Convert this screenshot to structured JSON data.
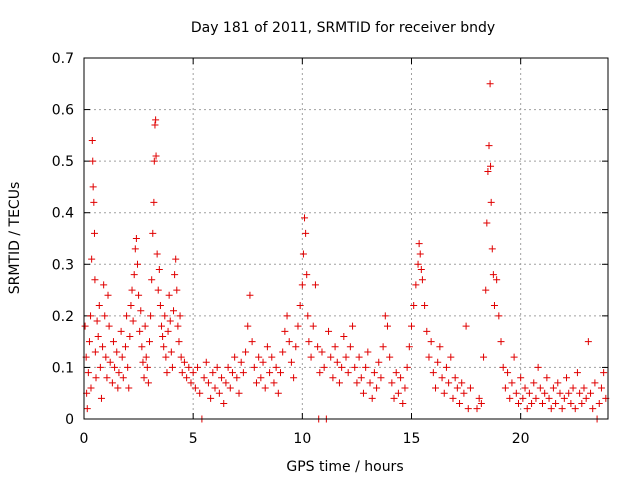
{
  "chart_data": {
    "type": "scatter",
    "title": "Day 181 of 2011, SRMTID for receiver bndy",
    "xlabel": "GPS time / hours",
    "ylabel": "SRMTID / TECUs",
    "xlim": [
      0,
      24
    ],
    "ylim": [
      0,
      0.7
    ],
    "x_ticks": [
      0,
      5,
      10,
      15,
      20
    ],
    "x_tick_labels": [
      "0",
      "5",
      "10",
      "15",
      "20"
    ],
    "y_ticks": [
      0,
      0.1,
      0.2,
      0.3,
      0.4,
      0.5,
      0.6,
      0.7
    ],
    "y_tick_labels": [
      "0",
      "0.1",
      "0.2",
      "0.3",
      "0.4",
      "0.5",
      "0.6",
      "0.7"
    ],
    "grid": true,
    "marker": "plus",
    "color": "#e00000",
    "series": [
      {
        "name": "SRMTID",
        "points": [
          [
            0.05,
            0.18
          ],
          [
            0.1,
            0.12
          ],
          [
            0.12,
            0.05
          ],
          [
            0.15,
            0.02
          ],
          [
            0.2,
            0.09
          ],
          [
            0.25,
            0.15
          ],
          [
            0.3,
            0.2
          ],
          [
            0.32,
            0.06
          ],
          [
            0.35,
            0.31
          ],
          [
            0.38,
            0.54
          ],
          [
            0.4,
            0.5
          ],
          [
            0.42,
            0.45
          ],
          [
            0.45,
            0.42
          ],
          [
            0.48,
            0.36
          ],
          [
            0.5,
            0.27
          ],
          [
            0.52,
            0.13
          ],
          [
            0.55,
            0.08
          ],
          [
            0.6,
            0.19
          ],
          [
            0.65,
            0.16
          ],
          [
            0.7,
            0.22
          ],
          [
            0.75,
            0.1
          ],
          [
            0.8,
            0.04
          ],
          [
            0.85,
            0.14
          ],
          [
            0.9,
            0.26
          ],
          [
            0.95,
            0.2
          ],
          [
            1.0,
            0.12
          ],
          [
            1.05,
            0.08
          ],
          [
            1.1,
            0.24
          ],
          [
            1.15,
            0.18
          ],
          [
            1.2,
            0.11
          ],
          [
            1.3,
            0.07
          ],
          [
            1.35,
            0.15
          ],
          [
            1.4,
            0.1
          ],
          [
            1.5,
            0.13
          ],
          [
            1.55,
            0.06
          ],
          [
            1.6,
            0.09
          ],
          [
            1.7,
            0.17
          ],
          [
            1.75,
            0.12
          ],
          [
            1.8,
            0.08
          ],
          [
            1.9,
            0.14
          ],
          [
            1.95,
            0.2
          ],
          [
            2.0,
            0.1
          ],
          [
            2.05,
            0.06
          ],
          [
            2.1,
            0.16
          ],
          [
            2.15,
            0.22
          ],
          [
            2.2,
            0.25
          ],
          [
            2.25,
            0.19
          ],
          [
            2.3,
            0.28
          ],
          [
            2.35,
            0.33
          ],
          [
            2.4,
            0.35
          ],
          [
            2.45,
            0.3
          ],
          [
            2.5,
            0.24
          ],
          [
            2.55,
            0.17
          ],
          [
            2.6,
            0.21
          ],
          [
            2.65,
            0.14
          ],
          [
            2.7,
            0.11
          ],
          [
            2.75,
            0.08
          ],
          [
            2.8,
            0.18
          ],
          [
            2.85,
            0.12
          ],
          [
            2.9,
            0.1
          ],
          [
            2.95,
            0.07
          ],
          [
            3.0,
            0.15
          ],
          [
            3.05,
            0.2
          ],
          [
            3.1,
            0.27
          ],
          [
            3.15,
            0.36
          ],
          [
            3.2,
            0.42
          ],
          [
            3.22,
            0.5
          ],
          [
            3.25,
            0.57
          ],
          [
            3.28,
            0.58
          ],
          [
            3.3,
            0.51
          ],
          [
            3.35,
            0.32
          ],
          [
            3.4,
            0.25
          ],
          [
            3.45,
            0.29
          ],
          [
            3.5,
            0.22
          ],
          [
            3.55,
            0.18
          ],
          [
            3.6,
            0.16
          ],
          [
            3.65,
            0.14
          ],
          [
            3.7,
            0.2
          ],
          [
            3.75,
            0.12
          ],
          [
            3.8,
            0.09
          ],
          [
            3.85,
            0.17
          ],
          [
            3.9,
            0.24
          ],
          [
            3.95,
            0.19
          ],
          [
            4.0,
            0.13
          ],
          [
            4.05,
            0.1
          ],
          [
            4.1,
            0.21
          ],
          [
            4.15,
            0.28
          ],
          [
            4.2,
            0.31
          ],
          [
            4.25,
            0.25
          ],
          [
            4.3,
            0.18
          ],
          [
            4.35,
            0.15
          ],
          [
            4.4,
            0.2
          ],
          [
            4.45,
            0.12
          ],
          [
            4.5,
            0.09
          ],
          [
            4.6,
            0.11
          ],
          [
            4.7,
            0.08
          ],
          [
            4.8,
            0.1
          ],
          [
            4.9,
            0.07
          ],
          [
            5.0,
            0.09
          ],
          [
            5.1,
            0.06
          ],
          [
            5.2,
            0.1
          ],
          [
            5.3,
            0.05
          ],
          [
            5.4,
            0.0
          ],
          [
            5.5,
            0.08
          ],
          [
            5.6,
            0.11
          ],
          [
            5.7,
            0.07
          ],
          [
            5.8,
            0.04
          ],
          [
            5.9,
            0.09
          ],
          [
            6.0,
            0.06
          ],
          [
            6.1,
            0.1
          ],
          [
            6.2,
            0.05
          ],
          [
            6.3,
            0.08
          ],
          [
            6.4,
            0.03
          ],
          [
            6.5,
            0.07
          ],
          [
            6.6,
            0.1
          ],
          [
            6.7,
            0.06
          ],
          [
            6.8,
            0.09
          ],
          [
            6.9,
            0.12
          ],
          [
            7.0,
            0.08
          ],
          [
            7.1,
            0.05
          ],
          [
            7.2,
            0.11
          ],
          [
            7.3,
            0.09
          ],
          [
            7.4,
            0.13
          ],
          [
            7.5,
            0.18
          ],
          [
            7.6,
            0.24
          ],
          [
            7.7,
            0.15
          ],
          [
            7.8,
            0.1
          ],
          [
            7.9,
            0.07
          ],
          [
            8.0,
            0.12
          ],
          [
            8.1,
            0.08
          ],
          [
            8.2,
            0.11
          ],
          [
            8.3,
            0.06
          ],
          [
            8.4,
            0.14
          ],
          [
            8.5,
            0.09
          ],
          [
            8.6,
            0.12
          ],
          [
            8.7,
            0.07
          ],
          [
            8.8,
            0.1
          ],
          [
            8.9,
            0.05
          ],
          [
            9.0,
            0.09
          ],
          [
            9.1,
            0.13
          ],
          [
            9.2,
            0.17
          ],
          [
            9.3,
            0.2
          ],
          [
            9.4,
            0.15
          ],
          [
            9.5,
            0.11
          ],
          [
            9.6,
            0.08
          ],
          [
            9.7,
            0.14
          ],
          [
            9.8,
            0.18
          ],
          [
            9.9,
            0.22
          ],
          [
            10.0,
            0.26
          ],
          [
            10.05,
            0.32
          ],
          [
            10.1,
            0.39
          ],
          [
            10.15,
            0.36
          ],
          [
            10.2,
            0.28
          ],
          [
            10.25,
            0.2
          ],
          [
            10.3,
            0.15
          ],
          [
            10.4,
            0.12
          ],
          [
            10.5,
            0.18
          ],
          [
            10.6,
            0.26
          ],
          [
            10.7,
            0.14
          ],
          [
            10.75,
            0.0
          ],
          [
            10.8,
            0.09
          ],
          [
            10.9,
            0.13
          ],
          [
            11.0,
            0.1
          ],
          [
            11.1,
            0.0
          ],
          [
            11.2,
            0.17
          ],
          [
            11.3,
            0.12
          ],
          [
            11.4,
            0.08
          ],
          [
            11.5,
            0.14
          ],
          [
            11.6,
            0.11
          ],
          [
            11.7,
            0.07
          ],
          [
            11.8,
            0.1
          ],
          [
            11.9,
            0.16
          ],
          [
            12.0,
            0.12
          ],
          [
            12.1,
            0.09
          ],
          [
            12.2,
            0.14
          ],
          [
            12.3,
            0.18
          ],
          [
            12.4,
            0.1
          ],
          [
            12.5,
            0.07
          ],
          [
            12.6,
            0.12
          ],
          [
            12.7,
            0.08
          ],
          [
            12.8,
            0.05
          ],
          [
            12.9,
            0.1
          ],
          [
            13.0,
            0.13
          ],
          [
            13.1,
            0.07
          ],
          [
            13.2,
            0.04
          ],
          [
            13.3,
            0.09
          ],
          [
            13.4,
            0.06
          ],
          [
            13.5,
            0.11
          ],
          [
            13.6,
            0.08
          ],
          [
            13.7,
            0.14
          ],
          [
            13.8,
            0.2
          ],
          [
            13.9,
            0.18
          ],
          [
            14.0,
            0.12
          ],
          [
            14.1,
            0.07
          ],
          [
            14.2,
            0.04
          ],
          [
            14.3,
            0.09
          ],
          [
            14.4,
            0.05
          ],
          [
            14.5,
            0.08
          ],
          [
            14.6,
            0.03
          ],
          [
            14.7,
            0.06
          ],
          [
            14.8,
            0.1
          ],
          [
            14.9,
            0.14
          ],
          [
            15.0,
            0.18
          ],
          [
            15.1,
            0.22
          ],
          [
            15.2,
            0.26
          ],
          [
            15.3,
            0.3
          ],
          [
            15.35,
            0.34
          ],
          [
            15.4,
            0.32
          ],
          [
            15.45,
            0.29
          ],
          [
            15.5,
            0.27
          ],
          [
            15.6,
            0.22
          ],
          [
            15.7,
            0.17
          ],
          [
            15.8,
            0.12
          ],
          [
            15.9,
            0.15
          ],
          [
            16.0,
            0.09
          ],
          [
            16.1,
            0.06
          ],
          [
            16.2,
            0.11
          ],
          [
            16.3,
            0.14
          ],
          [
            16.4,
            0.08
          ],
          [
            16.5,
            0.05
          ],
          [
            16.6,
            0.1
          ],
          [
            16.7,
            0.07
          ],
          [
            16.8,
            0.12
          ],
          [
            16.9,
            0.04
          ],
          [
            17.0,
            0.08
          ],
          [
            17.1,
            0.06
          ],
          [
            17.2,
            0.03
          ],
          [
            17.3,
            0.07
          ],
          [
            17.4,
            0.05
          ],
          [
            17.5,
            0.18
          ],
          [
            17.6,
            0.02
          ],
          [
            17.7,
            0.06
          ],
          [
            18.0,
            0.02
          ],
          [
            18.1,
            0.04
          ],
          [
            18.2,
            0.03
          ],
          [
            18.3,
            0.12
          ],
          [
            18.4,
            0.25
          ],
          [
            18.45,
            0.38
          ],
          [
            18.5,
            0.48
          ],
          [
            18.55,
            0.53
          ],
          [
            18.6,
            0.65
          ],
          [
            18.62,
            0.49
          ],
          [
            18.65,
            0.42
          ],
          [
            18.7,
            0.33
          ],
          [
            18.75,
            0.28
          ],
          [
            18.8,
            0.22
          ],
          [
            18.9,
            0.27
          ],
          [
            19.0,
            0.2
          ],
          [
            19.1,
            0.15
          ],
          [
            19.2,
            0.1
          ],
          [
            19.3,
            0.06
          ],
          [
            19.4,
            0.09
          ],
          [
            19.5,
            0.04
          ],
          [
            19.6,
            0.07
          ],
          [
            19.7,
            0.12
          ],
          [
            19.8,
            0.05
          ],
          [
            19.9,
            0.03
          ],
          [
            20.0,
            0.08
          ],
          [
            20.1,
            0.04
          ],
          [
            20.2,
            0.06
          ],
          [
            20.3,
            0.02
          ],
          [
            20.4,
            0.05
          ],
          [
            20.5,
            0.03
          ],
          [
            20.6,
            0.07
          ],
          [
            20.7,
            0.04
          ],
          [
            20.8,
            0.1
          ],
          [
            20.9,
            0.06
          ],
          [
            21.0,
            0.03
          ],
          [
            21.1,
            0.05
          ],
          [
            21.2,
            0.08
          ],
          [
            21.3,
            0.04
          ],
          [
            21.4,
            0.02
          ],
          [
            21.5,
            0.06
          ],
          [
            21.6,
            0.03
          ],
          [
            21.7,
            0.07
          ],
          [
            21.8,
            0.05
          ],
          [
            21.9,
            0.02
          ],
          [
            22.0,
            0.04
          ],
          [
            22.1,
            0.08
          ],
          [
            22.2,
            0.05
          ],
          [
            22.3,
            0.03
          ],
          [
            22.4,
            0.06
          ],
          [
            22.5,
            0.02
          ],
          [
            22.6,
            0.09
          ],
          [
            22.7,
            0.05
          ],
          [
            22.8,
            0.03
          ],
          [
            22.9,
            0.06
          ],
          [
            23.0,
            0.04
          ],
          [
            23.1,
            0.15
          ],
          [
            23.2,
            0.05
          ],
          [
            23.3,
            0.02
          ],
          [
            23.4,
            0.07
          ],
          [
            23.5,
            0.0
          ],
          [
            23.6,
            0.03
          ],
          [
            23.7,
            0.06
          ],
          [
            23.8,
            0.09
          ],
          [
            23.9,
            0.04
          ]
        ]
      }
    ]
  }
}
